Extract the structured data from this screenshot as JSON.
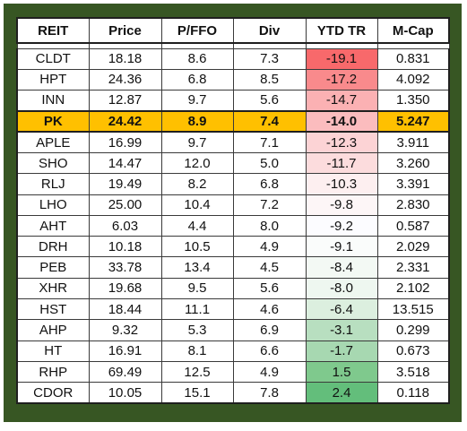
{
  "table": {
    "headers": [
      "REIT",
      "Price",
      "P/FFO",
      "Div",
      "YTD TR",
      "M-Cap"
    ],
    "highlight_color": "#ffc000",
    "rows": [
      {
        "reit": "CLDT",
        "price": "18.18",
        "pffo": "8.6",
        "div": "7.3",
        "ytd": "-19.1",
        "mcap": "0.831",
        "ytd_color": "#f8696b"
      },
      {
        "reit": "HPT",
        "price": "24.36",
        "pffo": "6.8",
        "div": "8.5",
        "ytd": "-17.2",
        "mcap": "4.092",
        "ytd_color": "#f98a8c"
      },
      {
        "reit": "INN",
        "price": "12.87",
        "pffo": "9.7",
        "div": "5.6",
        "ytd": "-14.7",
        "mcap": "1.350",
        "ytd_color": "#fbb1b3"
      },
      {
        "reit": "PK",
        "price": "24.42",
        "pffo": "8.9",
        "div": "7.4",
        "ytd": "-14.0",
        "mcap": "5.247",
        "ytd_color": "#fbbcbe",
        "highlight": true
      },
      {
        "reit": "APLE",
        "price": "16.99",
        "pffo": "9.7",
        "div": "7.1",
        "ytd": "-12.3",
        "mcap": "3.911",
        "ytd_color": "#fcd3d5"
      },
      {
        "reit": "SHO",
        "price": "14.47",
        "pffo": "12.0",
        "div": "5.0",
        "ytd": "-11.7",
        "mcap": "3.260",
        "ytd_color": "#fcdcdd"
      },
      {
        "reit": "RLJ",
        "price": "19.49",
        "pffo": "8.2",
        "div": "6.8",
        "ytd": "-10.3",
        "mcap": "3.391",
        "ytd_color": "#fdeff0"
      },
      {
        "reit": "LHO",
        "price": "25.00",
        "pffo": "10.4",
        "div": "7.2",
        "ytd": "-9.8",
        "mcap": "2.830",
        "ytd_color": "#fdf6f7"
      },
      {
        "reit": "AHT",
        "price": "6.03",
        "pffo": "4.4",
        "div": "8.0",
        "ytd": "-9.2",
        "mcap": "0.587",
        "ytd_color": "#fcfcff"
      },
      {
        "reit": "DRH",
        "price": "10.18",
        "pffo": "10.5",
        "div": "4.9",
        "ytd": "-9.1",
        "mcap": "2.029",
        "ytd_color": "#fafcfb"
      },
      {
        "reit": "PEB",
        "price": "33.78",
        "pffo": "13.4",
        "div": "4.5",
        "ytd": "-8.4",
        "mcap": "2.331",
        "ytd_color": "#f3f9f4"
      },
      {
        "reit": "XHR",
        "price": "19.68",
        "pffo": "9.5",
        "div": "5.6",
        "ytd": "-8.0",
        "mcap": "2.102",
        "ytd_color": "#eef7f0"
      },
      {
        "reit": "HST",
        "price": "18.44",
        "pffo": "11.1",
        "div": "4.6",
        "ytd": "-6.4",
        "mcap": "13.515",
        "ytd_color": "#dcefdf"
      },
      {
        "reit": "AHP",
        "price": "9.32",
        "pffo": "5.3",
        "div": "6.9",
        "ytd": "-3.1",
        "mcap": "0.299",
        "ytd_color": "#b8dfc0"
      },
      {
        "reit": "HT",
        "price": "16.91",
        "pffo": "8.1",
        "div": "6.6",
        "ytd": "-1.7",
        "mcap": "0.673",
        "ytd_color": "#a7d8b1"
      },
      {
        "reit": "RHP",
        "price": "69.49",
        "pffo": "12.5",
        "div": "4.9",
        "ytd": "1.5",
        "mcap": "3.518",
        "ytd_color": "#7fc98d"
      },
      {
        "reit": "CDOR",
        "price": "10.05",
        "pffo": "15.1",
        "div": "7.8",
        "ytd": "2.4",
        "mcap": "0.118",
        "ytd_color": "#63be7b"
      }
    ]
  }
}
